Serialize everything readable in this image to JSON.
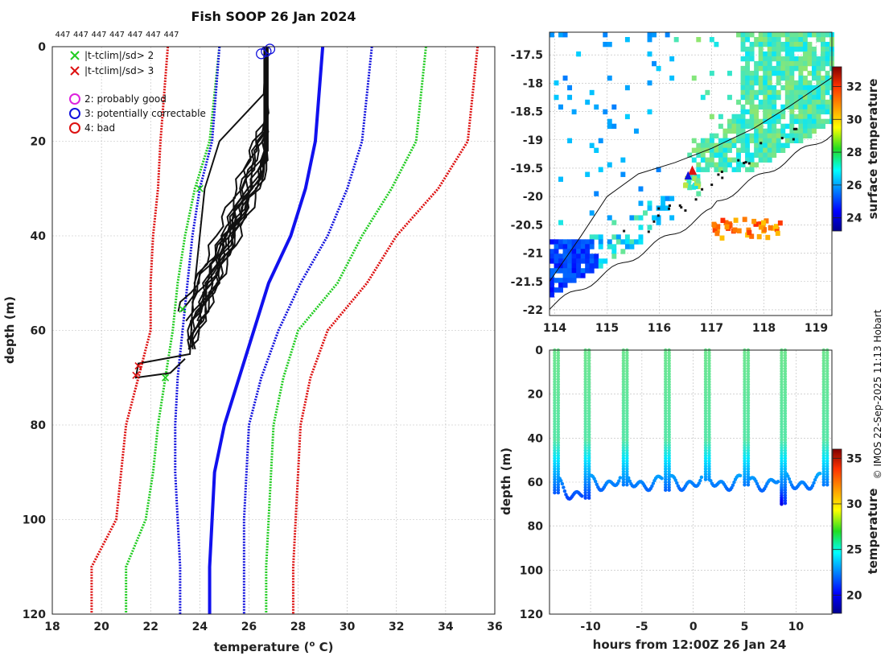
{
  "chart_data": [
    {
      "type": "line",
      "title": "Fish SOOP 26 Jan 2024",
      "xlabel": "temperature (",
      "xlabel_sup": "o",
      "xlabel_unit": " C)",
      "ylabel": "depth (m)",
      "xlim": [
        18,
        36
      ],
      "ylim": [
        120,
        0
      ],
      "xticks": [
        "18",
        "20",
        "22",
        "24",
        "26",
        "28",
        "30",
        "32",
        "34",
        "36"
      ],
      "yticks": [
        "0",
        "20",
        "40",
        "60",
        "80",
        "100",
        "120"
      ],
      "top_counts": [
        "447",
        "447",
        "447",
        "447",
        "447",
        "447",
        "447"
      ],
      "legend": [
        {
          "label": "|t-tclim|/sd> 2",
          "symbol": "x",
          "color": "#22cc22"
        },
        {
          "label": "|t-tclim|/sd> 3",
          "symbol": "x",
          "color": "#dd1111"
        },
        {
          "label": "2: probably good",
          "symbol": "o",
          "color": "#dd22dd"
        },
        {
          "label": "3: potentially correctable",
          "symbol": "o",
          "color": "#1111dd"
        },
        {
          "label": "4: bad",
          "symbol": "o",
          "color": "#dd1111"
        }
      ],
      "climatology": {
        "depth": [
          0,
          20,
          30,
          40,
          50,
          60,
          70,
          80,
          90,
          100,
          110
        ],
        "mean": [
          29.0,
          28.7,
          28.3,
          27.7,
          26.8,
          26.2,
          25.6,
          25.0,
          24.6,
          24.5,
          24.4
        ],
        "sd1_low": [
          24.8,
          24.5,
          24.0,
          23.7,
          23.5,
          23.3,
          23.1,
          23.0,
          23.0,
          23.1,
          23.2
        ],
        "sd1_high": [
          31.0,
          30.6,
          30.0,
          29.2,
          28.1,
          27.2,
          26.5,
          26.0,
          25.9,
          25.8,
          25.8
        ],
        "sd2_low": [
          24.8,
          24.4,
          23.8,
          23.4,
          23.1,
          22.9,
          22.6,
          22.3,
          22.1,
          21.8,
          21.0
        ],
        "sd2_high": [
          33.2,
          32.8,
          31.8,
          30.6,
          29.6,
          28.0,
          27.4,
          27.0,
          26.9,
          26.8,
          26.7
        ],
        "sd3_low": [
          22.7,
          22.4,
          22.3,
          22.1,
          22.0,
          22.0,
          21.5,
          21.0,
          20.8,
          20.6,
          19.6
        ],
        "sd3_high": [
          35.3,
          34.9,
          33.7,
          32.0,
          30.8,
          29.2,
          28.5,
          28.1,
          28.0,
          27.9,
          27.8
        ]
      }
    },
    {
      "type": "heatmap",
      "title": "surface temperature map",
      "xticks": [
        "114",
        "115",
        "116",
        "117",
        "118",
        "119"
      ],
      "yticks": [
        "-17.5",
        "-18",
        "-18.5",
        "-19",
        "-19.5",
        "-20",
        "-20.5",
        "-21",
        "-21.5",
        "-22"
      ],
      "colorbar_label": "surface temperature",
      "colorbar_ticks": [
        "24",
        "26",
        "28",
        "30",
        "32"
      ],
      "colorbar_range": [
        23.2,
        33.2
      ],
      "xlim": [
        113.9,
        119.3
      ],
      "ylim": [
        -22.1,
        -17.1
      ]
    },
    {
      "type": "scatter",
      "xlabel": "hours from 12:00Z 26 Jan 24",
      "ylabel": "depth (m)",
      "xticks": [
        "-10",
        "-5",
        "0",
        "5",
        "10"
      ],
      "yticks": [
        "0",
        "20",
        "40",
        "60",
        "80",
        "100",
        "120"
      ],
      "xlim": [
        -14,
        13.5
      ],
      "ylim": [
        120,
        0
      ],
      "colorbar_label": "temperature",
      "colorbar_ticks": [
        "20",
        "25",
        "30",
        "35"
      ],
      "colorbar_range": [
        18,
        36
      ],
      "profile_hours": [
        -13.5,
        -10.5,
        -6.8,
        -2.7,
        1.2,
        5.0,
        8.6,
        12.7
      ],
      "profile_bottom_depths": [
        66,
        68,
        62,
        64,
        60,
        62,
        70,
        62
      ]
    }
  ],
  "side_text": "© IMOS 22-Sep-2025 11:13 Hobart"
}
